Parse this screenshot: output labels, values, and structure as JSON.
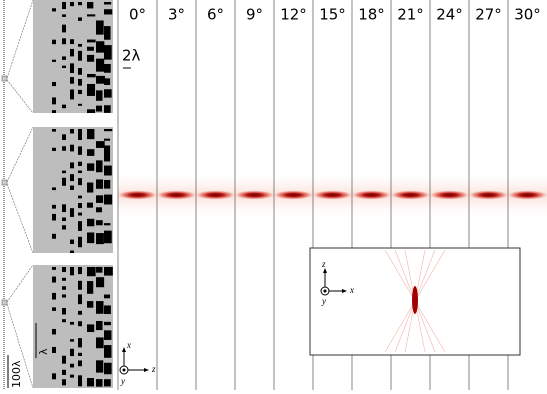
{
  "figure": {
    "columns": [
      "0°",
      "3°",
      "6°",
      "9°",
      "12°",
      "15°",
      "18°",
      "21°",
      "24°",
      "27°",
      "30°"
    ],
    "scale_top": "2λ",
    "scale_left": "λ",
    "scale_bottom": "100λ",
    "main_axes": {
      "x": "x",
      "y": "y",
      "z": "z"
    },
    "inset_axes": {
      "z": "z",
      "x": "x",
      "y": "y"
    }
  }
}
